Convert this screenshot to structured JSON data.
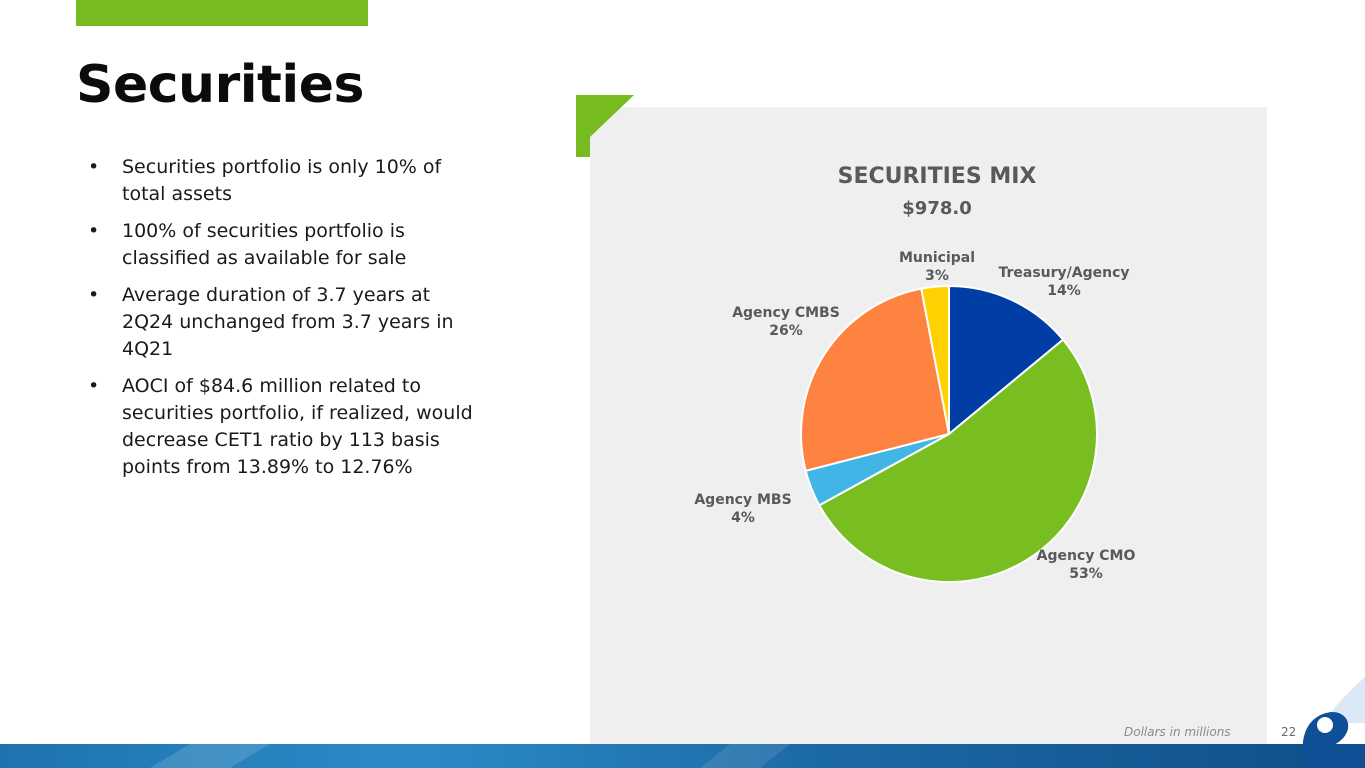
{
  "page": {
    "title": "Securities",
    "bullets": [
      "Securities portfolio is only 10% of total assets",
      "100% of securities portfolio is classified as available for sale",
      "Average duration of 3.7 years at 2Q24 unchanged from 3.7 years in 4Q21",
      "AOCI of $84.6 million related to securities portfolio, if realized, would decrease CET1 ratio by 113 basis points from 13.89% to 12.76%"
    ],
    "footnote": "Dollars in millions",
    "page_number": "22"
  },
  "colors": {
    "accent_green": "#76bc21",
    "accent_blue": "#0e4f97"
  },
  "chart_data": {
    "type": "pie",
    "title": "SECURITIES MIX",
    "subtitle": "$978.0",
    "legend": "none",
    "slices": [
      {
        "label": "Treasury/Agency",
        "value": 14,
        "display": "14%",
        "color": "#003da5"
      },
      {
        "label": "Agency CMO",
        "value": 53,
        "display": "53%",
        "color": "#78be20"
      },
      {
        "label": "Agency MBS",
        "value": 4,
        "display": "4%",
        "color": "#41b6e6"
      },
      {
        "label": "Agency CMBS",
        "value": 26,
        "display": "26%",
        "color": "#ff8340"
      },
      {
        "label": "Municipal",
        "value": 3,
        "display": "3%",
        "color": "#ffd100"
      }
    ]
  }
}
